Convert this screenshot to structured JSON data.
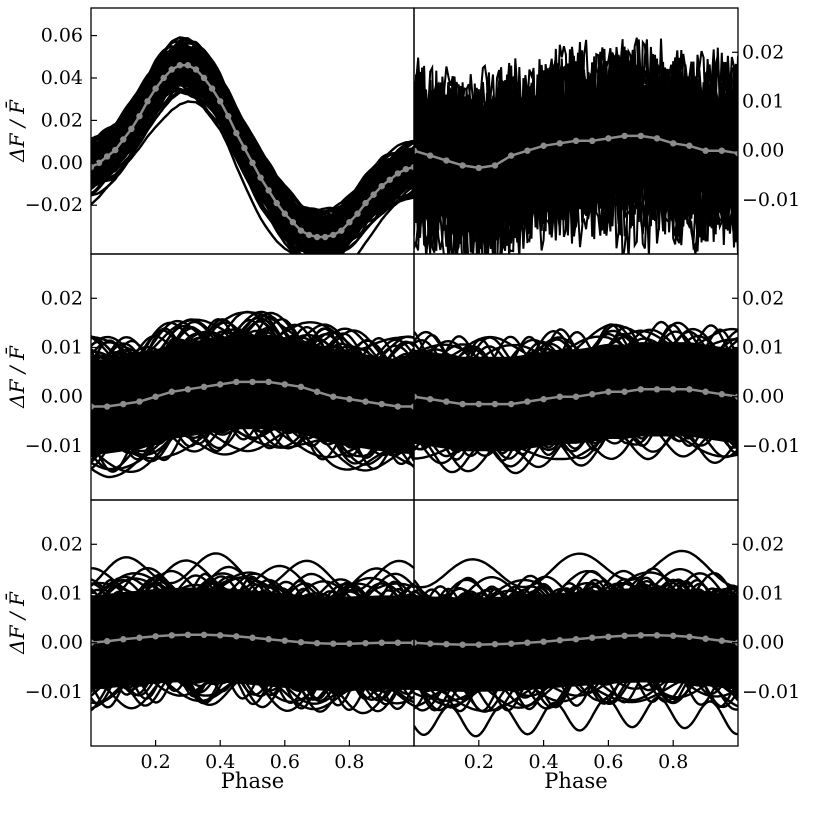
{
  "figure": {
    "ylabel": "ΔF / F̄",
    "xlabel": "Phase",
    "colors": {
      "raw": "#000000",
      "binned": "#8c8c8c",
      "frame": "#000000"
    }
  },
  "chart_data": [
    {
      "type": "scatter",
      "panel": "top-left",
      "xlim": [
        0,
        1
      ],
      "ylim": [
        -0.043,
        0.073
      ],
      "xticks": [],
      "yticks": [
        -0.02,
        0.0,
        0.02,
        0.04,
        0.06
      ],
      "ytick_labels": [
        "−0.02",
        "0.00",
        "0.02",
        "0.04",
        "0.06"
      ],
      "ytick_side": "left",
      "ylabel": "ΔF / F̄",
      "xlabel": "",
      "raw_band": {
        "center": "binned",
        "halfwidth": 0.012
      },
      "series": [
        {
          "label": "binned",
          "x": [
            0.0,
            0.025,
            0.05,
            0.075,
            0.1,
            0.125,
            0.15,
            0.175,
            0.2,
            0.225,
            0.25,
            0.275,
            0.3,
            0.325,
            0.35,
            0.375,
            0.4,
            0.425,
            0.45,
            0.475,
            0.5,
            0.525,
            0.55,
            0.575,
            0.6,
            0.625,
            0.65,
            0.675,
            0.7,
            0.725,
            0.75,
            0.775,
            0.8,
            0.825,
            0.85,
            0.875,
            0.9,
            0.925,
            0.95,
            0.975,
            1.0
          ],
          "y": [
            -0.002,
            0.0,
            0.003,
            0.006,
            0.011,
            0.016,
            0.022,
            0.029,
            0.035,
            0.04,
            0.044,
            0.046,
            0.046,
            0.044,
            0.04,
            0.035,
            0.029,
            0.022,
            0.014,
            0.007,
            0.0,
            -0.007,
            -0.013,
            -0.019,
            -0.024,
            -0.028,
            -0.032,
            -0.034,
            -0.035,
            -0.035,
            -0.034,
            -0.032,
            -0.028,
            -0.024,
            -0.019,
            -0.015,
            -0.011,
            -0.008,
            -0.005,
            -0.003,
            -0.002
          ]
        }
      ]
    },
    {
      "type": "scatter",
      "panel": "top-right",
      "xlim": [
        0,
        1
      ],
      "ylim": [
        -0.021,
        0.029
      ],
      "xticks": [],
      "yticks": [
        -0.01,
        0.0,
        0.01,
        0.02
      ],
      "ytick_labels": [
        "−0.01",
        "0.00",
        "0.01",
        "0.02"
      ],
      "ytick_side": "right",
      "ylabel": "",
      "xlabel": "",
      "raw_band": {
        "center": "binned",
        "halfwidth": 0.011,
        "noisy": true
      },
      "series": [
        {
          "label": "binned",
          "x": [
            0.0,
            0.05,
            0.1,
            0.15,
            0.2,
            0.25,
            0.3,
            0.35,
            0.4,
            0.45,
            0.5,
            0.55,
            0.6,
            0.65,
            0.7,
            0.75,
            0.8,
            0.85,
            0.9,
            0.95,
            1.0
          ],
          "y": [
            0.0,
            -0.001,
            -0.002,
            -0.003,
            -0.0035,
            -0.003,
            -0.001,
            0.0,
            0.001,
            0.0015,
            0.002,
            0.002,
            0.0025,
            0.003,
            0.003,
            0.0025,
            0.0015,
            0.001,
            0.0,
            0.0,
            -0.0005
          ]
        }
      ]
    },
    {
      "type": "scatter",
      "panel": "middle-left",
      "xlim": [
        0,
        1
      ],
      "ylim": [
        -0.021,
        0.029
      ],
      "xticks": [],
      "yticks": [
        -0.01,
        0.0,
        0.01,
        0.02
      ],
      "ytick_labels": [
        "−0.01",
        "0.00",
        "0.01",
        "0.02"
      ],
      "ytick_side": "left",
      "ylabel": "ΔF / F̄",
      "xlabel": "",
      "raw_band": {
        "center": "binned",
        "halfwidth": 0.012
      },
      "series": [
        {
          "label": "binned",
          "x": [
            0.0,
            0.05,
            0.1,
            0.15,
            0.2,
            0.25,
            0.3,
            0.35,
            0.4,
            0.45,
            0.5,
            0.55,
            0.6,
            0.65,
            0.7,
            0.75,
            0.8,
            0.85,
            0.9,
            0.95,
            1.0
          ],
          "y": [
            -0.002,
            -0.002,
            -0.0015,
            -0.001,
            0.0,
            0.001,
            0.0015,
            0.002,
            0.0025,
            0.003,
            0.003,
            0.003,
            0.0025,
            0.002,
            0.001,
            0.0,
            -0.0005,
            -0.001,
            -0.0015,
            -0.002,
            -0.002
          ]
        }
      ]
    },
    {
      "type": "scatter",
      "panel": "middle-right",
      "xlim": [
        0,
        1
      ],
      "ylim": [
        -0.021,
        0.029
      ],
      "xticks": [],
      "yticks": [
        -0.01,
        0.0,
        0.01,
        0.02
      ],
      "ytick_labels": [
        "−0.01",
        "0.00",
        "0.01",
        "0.02"
      ],
      "ytick_side": "right",
      "ylabel": "",
      "xlabel": "",
      "raw_band": {
        "center": "binned",
        "halfwidth": 0.012
      },
      "series": [
        {
          "label": "binned",
          "x": [
            0.0,
            0.05,
            0.1,
            0.15,
            0.2,
            0.25,
            0.3,
            0.35,
            0.4,
            0.45,
            0.5,
            0.55,
            0.6,
            0.65,
            0.7,
            0.75,
            0.8,
            0.85,
            0.9,
            0.95,
            1.0
          ],
          "y": [
            0.0,
            -0.0005,
            -0.001,
            -0.0015,
            -0.0015,
            -0.0015,
            -0.0015,
            -0.001,
            -0.0005,
            0.0,
            0.0,
            0.0005,
            0.001,
            0.001,
            0.0015,
            0.0015,
            0.0015,
            0.0015,
            0.001,
            0.0005,
            0.0
          ]
        }
      ]
    },
    {
      "type": "scatter",
      "panel": "bottom-left",
      "xlim": [
        0,
        1
      ],
      "ylim": [
        -0.021,
        0.029
      ],
      "xticks": [
        0.2,
        0.4,
        0.6,
        0.8
      ],
      "xtick_labels": [
        "0.2",
        "0.4",
        "0.6",
        "0.8"
      ],
      "yticks": [
        -0.01,
        0.0,
        0.01,
        0.02
      ],
      "ytick_labels": [
        "−0.01",
        "0.00",
        "0.01",
        "0.02"
      ],
      "ytick_side": "left",
      "ylabel": "ΔF / F̄",
      "xlabel": "Phase",
      "raw_band": {
        "center": "binned",
        "halfwidth": 0.012
      },
      "series": [
        {
          "label": "binned",
          "x": [
            0.0,
            0.05,
            0.1,
            0.15,
            0.2,
            0.25,
            0.3,
            0.35,
            0.4,
            0.45,
            0.5,
            0.55,
            0.6,
            0.65,
            0.7,
            0.75,
            0.8,
            0.85,
            0.9,
            0.95,
            1.0
          ],
          "y": [
            0.0,
            0.0003,
            0.0007,
            0.001,
            0.0013,
            0.0015,
            0.0016,
            0.0016,
            0.0015,
            0.0013,
            0.001,
            0.0007,
            0.0004,
            0.0001,
            -0.0001,
            -0.0002,
            -0.0002,
            -0.0001,
            0.0,
            0.0,
            0.0
          ]
        }
      ]
    },
    {
      "type": "scatter",
      "panel": "bottom-right",
      "xlim": [
        0,
        1
      ],
      "ylim": [
        -0.021,
        0.029
      ],
      "xticks": [
        0.2,
        0.4,
        0.6,
        0.8
      ],
      "xtick_labels": [
        "0.2",
        "0.4",
        "0.6",
        "0.8"
      ],
      "yticks": [
        -0.01,
        0.0,
        0.01,
        0.02
      ],
      "ytick_labels": [
        "−0.01",
        "0.00",
        "0.01",
        "0.02"
      ],
      "ytick_side": "right",
      "ylabel": "",
      "xlabel": "Phase",
      "raw_band": {
        "center": "binned",
        "halfwidth": 0.012
      },
      "series": [
        {
          "label": "binned",
          "x": [
            0.0,
            0.05,
            0.1,
            0.15,
            0.2,
            0.25,
            0.3,
            0.35,
            0.4,
            0.45,
            0.5,
            0.55,
            0.6,
            0.65,
            0.7,
            0.75,
            0.8,
            0.85,
            0.9,
            0.95,
            1.0
          ],
          "y": [
            0.0,
            -0.0002,
            -0.0003,
            -0.0004,
            -0.0004,
            -0.0003,
            -0.0002,
            0.0,
            0.0002,
            0.0005,
            0.0007,
            0.001,
            0.0012,
            0.0014,
            0.0015,
            0.0015,
            0.0014,
            0.0012,
            0.0008,
            0.0004,
            0.0
          ]
        }
      ]
    }
  ]
}
